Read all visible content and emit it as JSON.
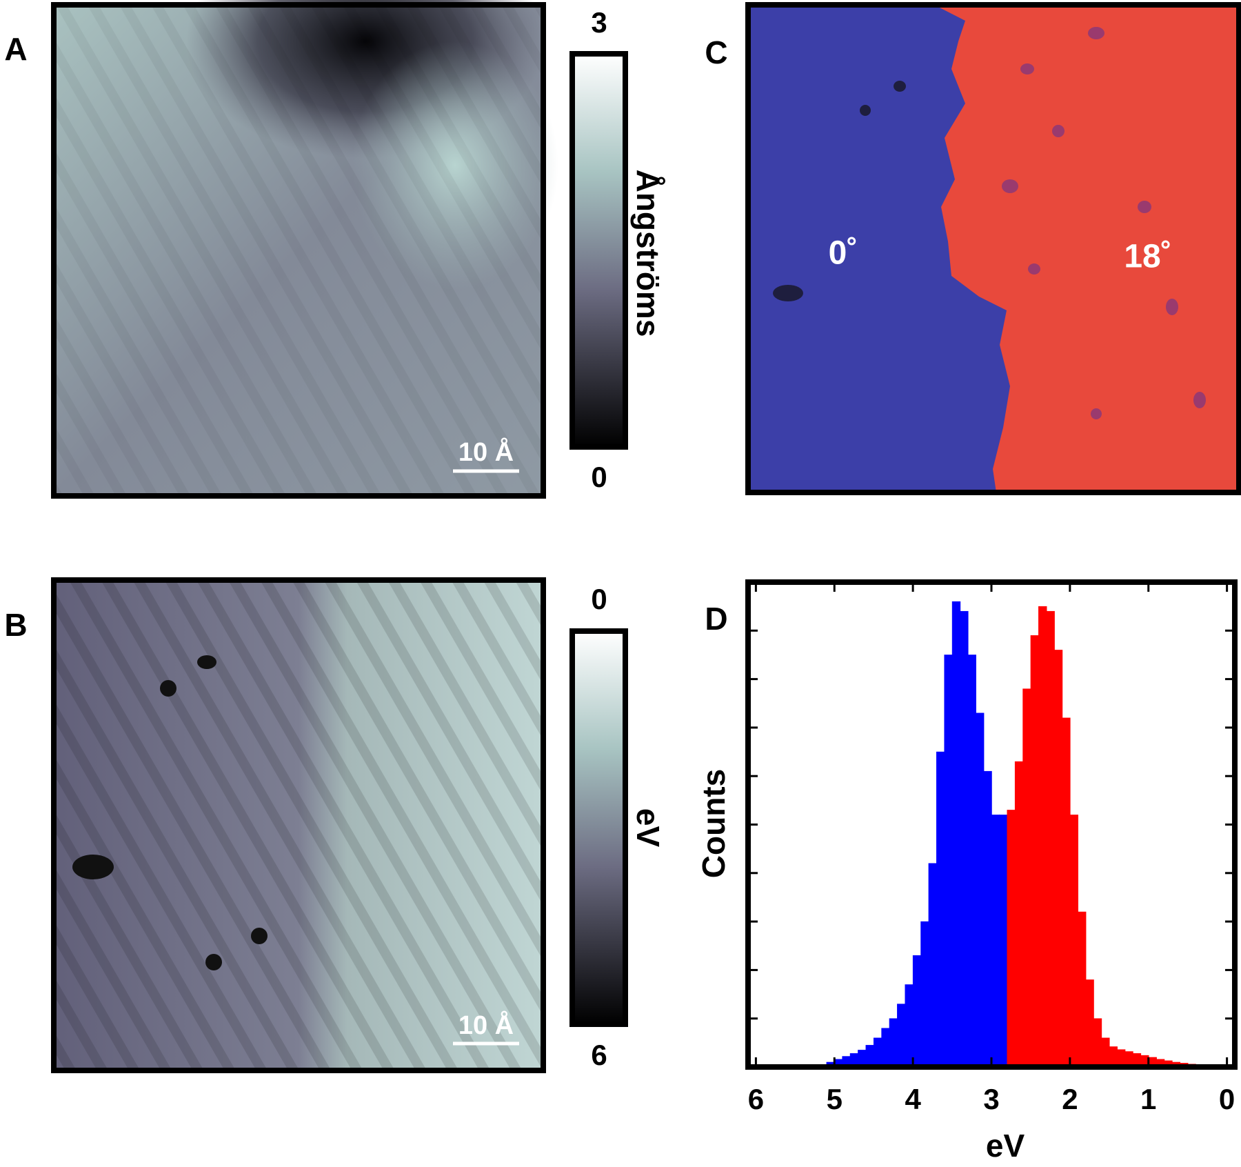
{
  "panels": {
    "A": {
      "label": "A",
      "colorbar": {
        "top": 3,
        "bottom": 0,
        "label": "Ångströms"
      },
      "scale_bar": "10 Å"
    },
    "B": {
      "label": "B",
      "colorbar": {
        "top": 0,
        "bottom": 6,
        "label": "eV"
      },
      "scale_bar": "10 Å"
    },
    "C": {
      "label": "C",
      "annotations": [
        "0˚",
        "18˚"
      ]
    },
    "D": {
      "label": "D"
    }
  },
  "chart_data": {
    "type": "histogram",
    "xlabel": "eV",
    "ylabel": "Counts",
    "xlim": [
      6.1,
      -0.1
    ],
    "xticks": [
      6,
      5,
      4,
      3,
      2,
      1,
      0
    ],
    "ylim": [
      0,
      10
    ],
    "yticks": [
      1,
      2,
      3,
      4,
      5,
      6,
      7,
      8,
      9
    ],
    "series": [
      {
        "color": "#0000ff",
        "bins": [
          2.8,
          2.9,
          3.0,
          3.1,
          3.2,
          3.3,
          3.4,
          3.5,
          3.6,
          3.7,
          3.8,
          3.9,
          4.0,
          4.1,
          4.2,
          4.3,
          4.4,
          4.5,
          4.6,
          4.7,
          4.8,
          4.9,
          5.0,
          5.1,
          5.2,
          5.3
        ],
        "values": [
          5.2,
          5.2,
          6.1,
          7.3,
          8.5,
          9.4,
          9.6,
          8.5,
          6.5,
          4.2,
          3.0,
          2.3,
          1.7,
          1.3,
          1.0,
          0.8,
          0.6,
          0.45,
          0.35,
          0.28,
          0.22,
          0.16,
          0.1,
          0.05,
          0.02
        ]
      },
      {
        "color": "#ff0000",
        "bins": [
          0.3,
          0.4,
          0.5,
          0.6,
          0.7,
          0.8,
          0.9,
          1.0,
          1.1,
          1.2,
          1.3,
          1.4,
          1.5,
          1.6,
          1.7,
          1.8,
          1.9,
          2.0,
          2.1,
          2.2,
          2.3,
          2.4,
          2.5,
          2.6,
          2.7,
          2.8
        ],
        "values": [
          0.03,
          0.06,
          0.08,
          0.1,
          0.13,
          0.16,
          0.2,
          0.24,
          0.28,
          0.32,
          0.36,
          0.42,
          0.6,
          1.0,
          1.8,
          3.2,
          5.2,
          7.2,
          8.6,
          9.4,
          9.5,
          8.9,
          7.8,
          6.3,
          5.3
        ]
      }
    ]
  }
}
